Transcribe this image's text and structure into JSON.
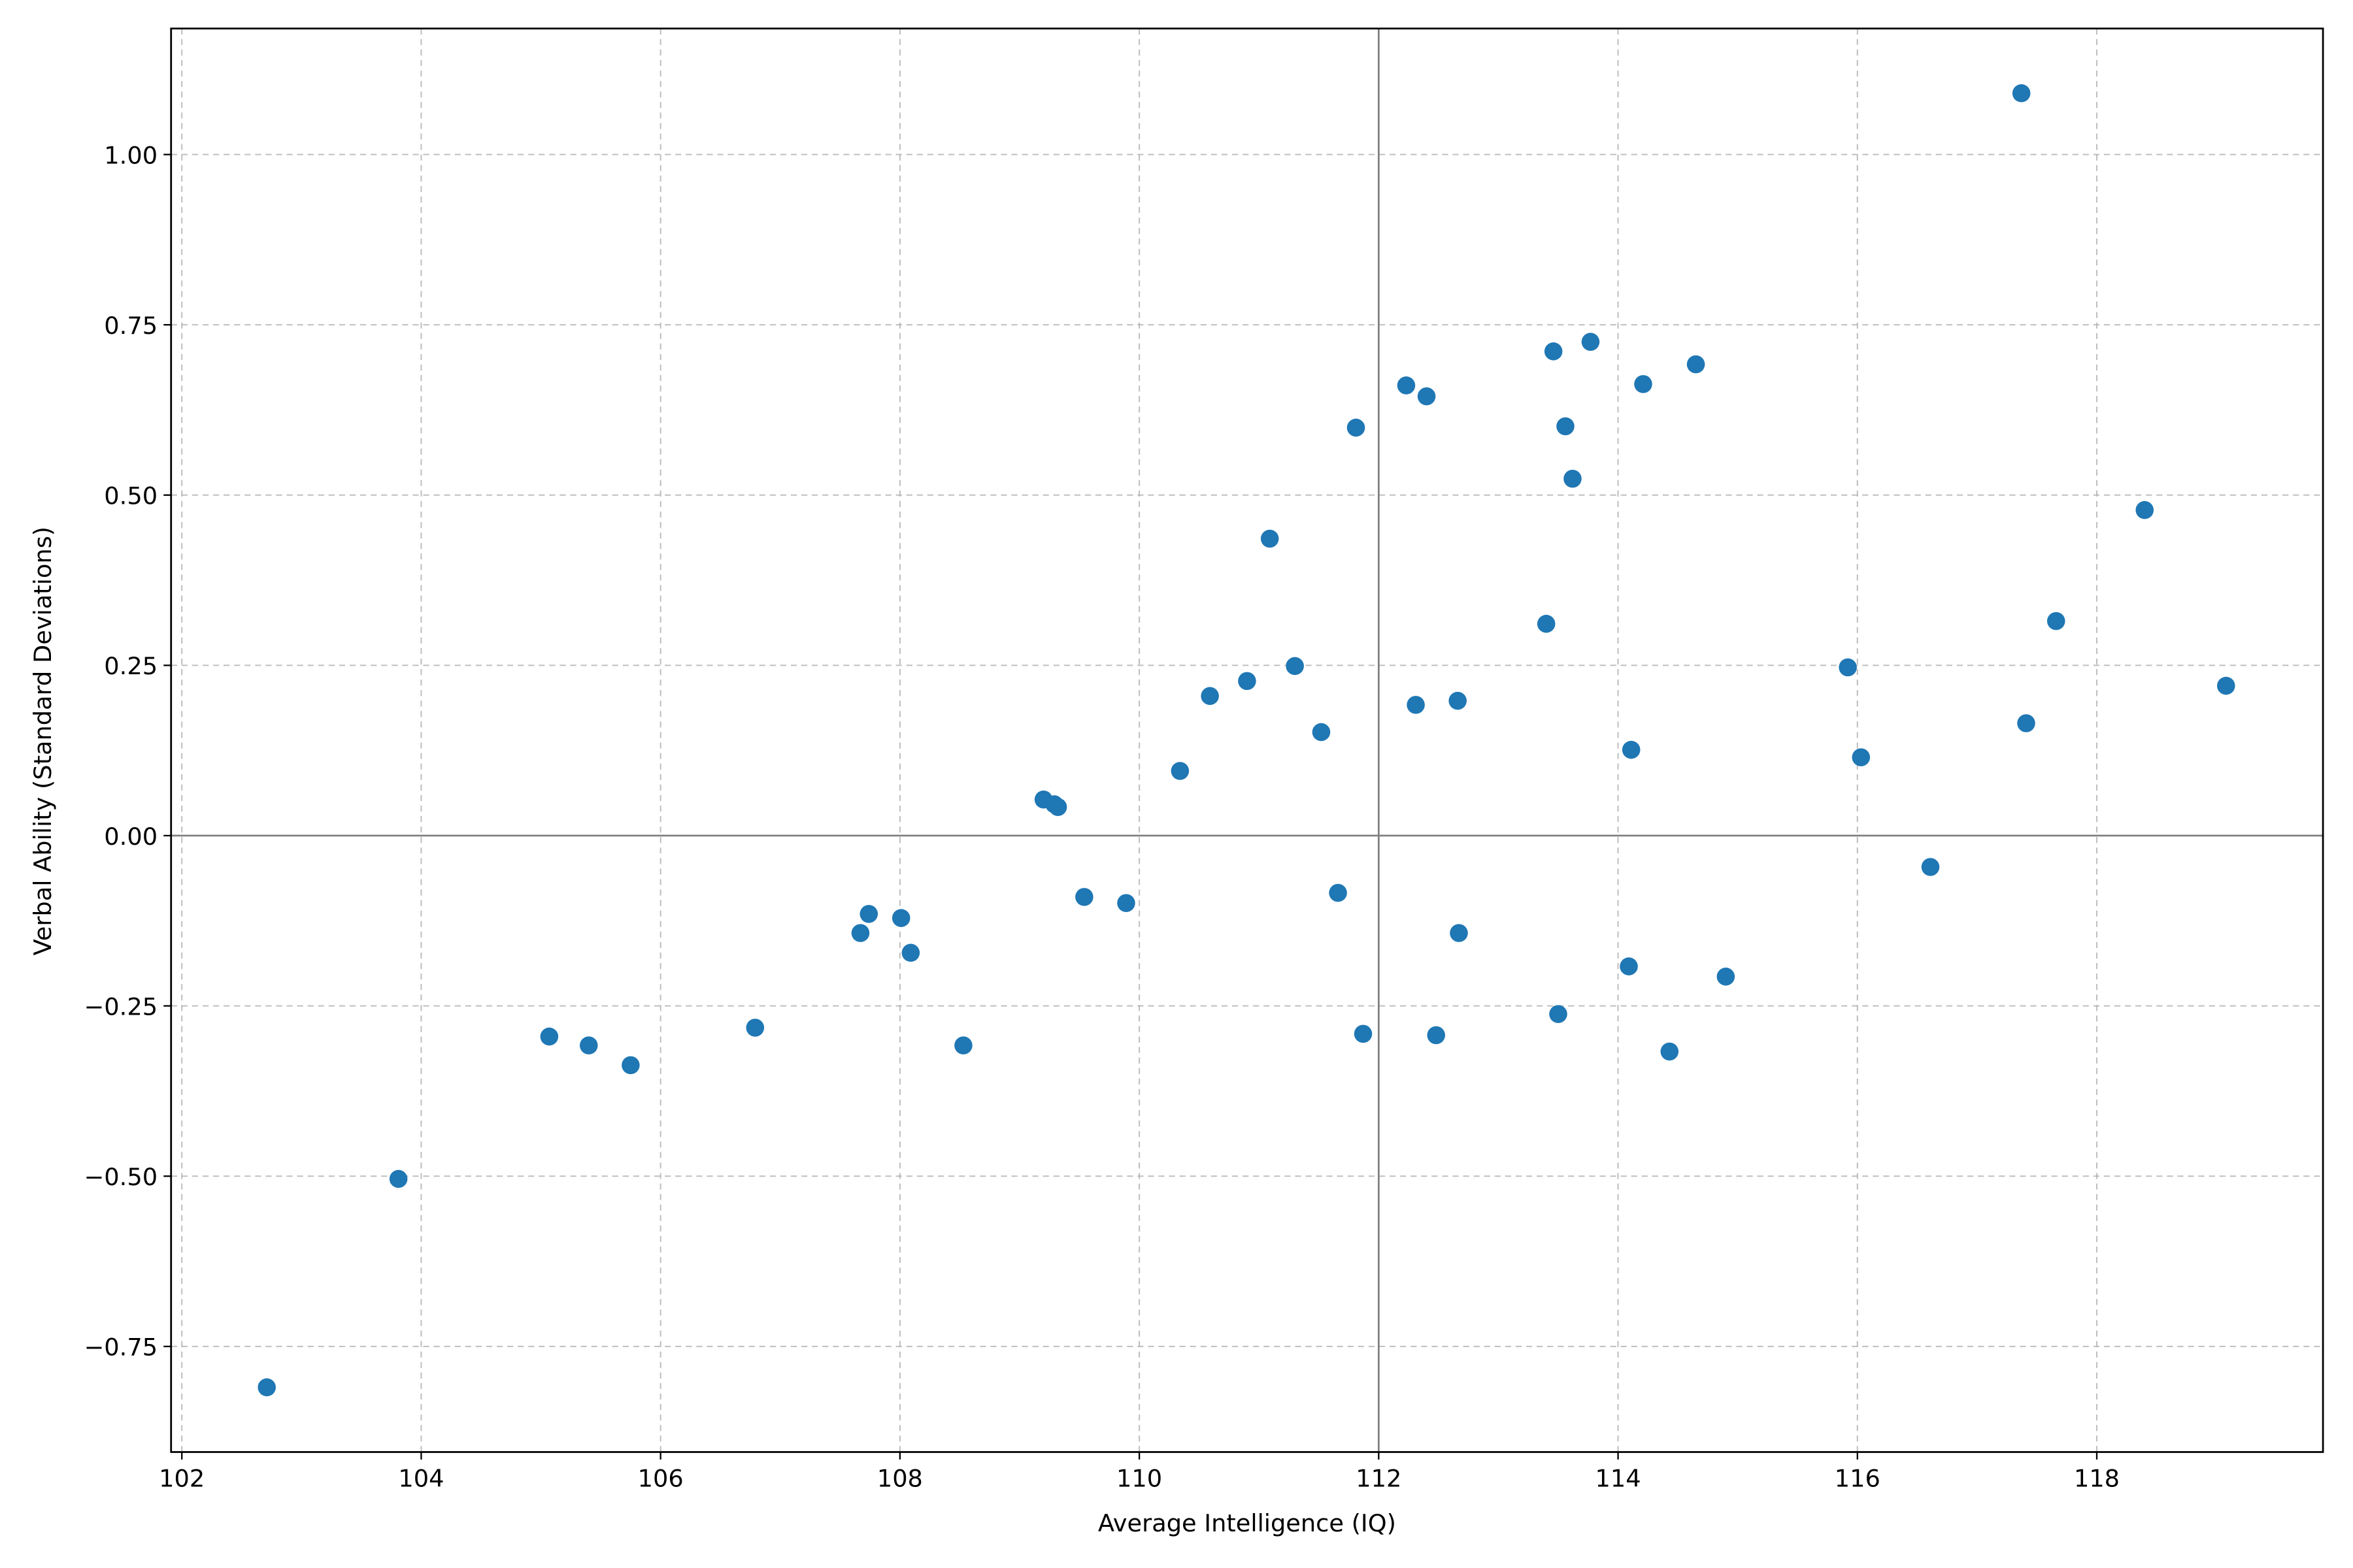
{
  "chart_data": {
    "type": "scatter",
    "xlabel": "Average Intelligence (IQ)",
    "ylabel": "Verbal Ability (Standard Deviations)",
    "color": "#1f77b4",
    "grid": true,
    "hlines": [
      0
    ],
    "vlines": [
      112
    ],
    "xlim": [
      101.91,
      119.89
    ],
    "ylim": [
      -0.905,
      1.185
    ],
    "xticks": [
      102,
      104,
      106,
      108,
      110,
      112,
      114,
      116,
      118
    ],
    "yticks": [
      {
        "value": -0.75,
        "label": "−0.75"
      },
      {
        "value": -0.5,
        "label": "−0.50"
      },
      {
        "value": -0.25,
        "label": "−0.25"
      },
      {
        "value": 0,
        "label": "0.00"
      },
      {
        "value": 0.25,
        "label": "0.25"
      },
      {
        "value": 0.5,
        "label": "0.50"
      },
      {
        "value": 0.75,
        "label": "0.75"
      },
      {
        "value": 1,
        "label": "1.00"
      }
    ],
    "x": [
      102.71,
      103.81,
      105.07,
      105.4,
      105.75,
      106.79,
      107.67,
      107.74,
      108.01,
      108.09,
      108.53,
      109.2,
      109.29,
      109.32,
      109.54,
      109.89,
      110.34,
      110.59,
      110.9,
      111.09,
      111.3,
      111.52,
      111.66,
      111.81,
      111.87,
      112.23,
      112.31,
      112.4,
      112.48,
      112.66,
      112.67,
      113.4,
      113.46,
      113.5,
      113.56,
      113.62,
      113.77,
      114.09,
      114.11,
      114.21,
      114.43,
      114.65,
      114.9,
      115.92,
      116.03,
      116.61,
      117.37,
      117.41,
      117.66,
      118.4,
      119.08
    ],
    "values": [
      -0.81,
      -0.504,
      -0.295,
      -0.308,
      -0.337,
      -0.282,
      -0.143,
      -0.115,
      -0.121,
      -0.172,
      -0.308,
      0.053,
      0.046,
      0.042,
      -0.09,
      -0.099,
      0.095,
      0.205,
      0.227,
      0.436,
      0.249,
      0.152,
      -0.084,
      0.599,
      -0.291,
      0.661,
      0.192,
      0.645,
      -0.293,
      0.198,
      -0.143,
      0.311,
      0.711,
      -0.262,
      0.601,
      0.524,
      0.725,
      -0.192,
      0.126,
      0.663,
      -0.317,
      0.692,
      -0.207,
      0.247,
      0.115,
      -0.046,
      1.09,
      0.165,
      0.315,
      0.478,
      0.22
    ]
  }
}
